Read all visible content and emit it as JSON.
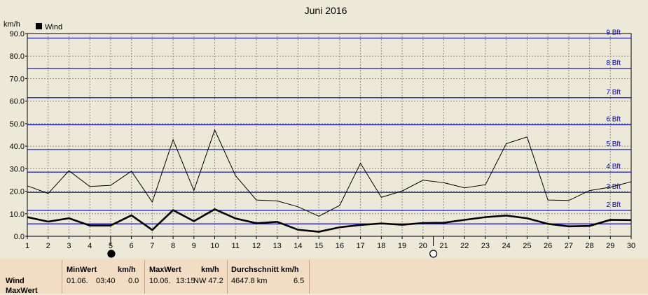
{
  "chart_data": {
    "type": "line",
    "title": "Juni 2016",
    "ylabel": "km/h",
    "legend": {
      "label": "Wind",
      "placement": "top-left"
    },
    "xlim": [
      1,
      30
    ],
    "ylim": [
      0,
      90
    ],
    "xticks": [
      "1",
      "2",
      "3",
      "4",
      "5",
      "6",
      "7",
      "8",
      "9",
      "10",
      "11",
      "12",
      "13",
      "14",
      "15",
      "16",
      "17",
      "18",
      "19",
      "20",
      "21",
      "22",
      "23",
      "24",
      "25",
      "26",
      "27",
      "28",
      "29",
      "30"
    ],
    "yticks": [
      "0.0",
      "10.0",
      "20.0",
      "30.0",
      "40.0",
      "50.0",
      "60.0",
      "70.0",
      "80.0",
      "90.0"
    ],
    "grid": true,
    "beaufort": [
      {
        "label": "",
        "value": 5.5
      },
      {
        "label": "2 Bft",
        "value": 11.5
      },
      {
        "label": "3 Bft",
        "value": 19.5
      },
      {
        "label": "4 Bft",
        "value": 28.5
      },
      {
        "label": "5 Bft",
        "value": 38.5
      },
      {
        "label": "6 Bft",
        "value": 49.5
      },
      {
        "label": "7 Bft",
        "value": 61.5
      },
      {
        "label": "8 Bft",
        "value": 74.5
      },
      {
        "label": "9 Bft",
        "value": 88
      }
    ],
    "x": [
      1,
      2,
      3,
      4,
      5,
      6,
      7,
      8,
      9,
      10,
      11,
      12,
      13,
      14,
      15,
      16,
      17,
      18,
      19,
      20,
      21,
      22,
      23,
      24,
      25,
      26,
      27,
      28,
      29,
      30
    ],
    "series": [
      {
        "values": [
          22.4,
          19.0,
          29.1,
          22.1,
          22.6,
          28.9,
          15.2,
          42.9,
          20.3,
          47.2,
          26.9,
          16.1,
          15.7,
          13.1,
          8.9,
          13.7,
          32.4,
          17.3,
          20.1,
          24.9,
          23.8,
          21.5,
          22.9,
          41.1,
          44.1,
          16.1,
          15.9,
          20.3,
          21.8,
          24.2
        ]
      },
      {
        "values": [
          8.5,
          6.5,
          8.0,
          4.8,
          4.8,
          9.3,
          2.8,
          11.6,
          6.7,
          12.0,
          7.9,
          5.8,
          6.4,
          2.9,
          2.0,
          4.0,
          5.0,
          5.7,
          5.1,
          5.9,
          6.0,
          7.3,
          8.5,
          9.2,
          8.0,
          5.5,
          4.4,
          4.6,
          7.3,
          7.2
        ]
      }
    ],
    "moon_phases": [
      {
        "day": 5,
        "phase": "new"
      },
      {
        "day": 20.5,
        "phase": "full"
      }
    ]
  },
  "stats": {
    "headers": {
      "min": "MinWert",
      "min_unit": "km/h",
      "max": "MaxWert",
      "max_unit": "km/h",
      "avg": "Durchschnitt km/h"
    },
    "rows": [
      {
        "label": "Wind",
        "min_date": "01.06.",
        "min_time": "03:40",
        "min_value": "0.0",
        "max_date": "10.06.",
        "max_time": "13:15",
        "max_dir_value": "NW 47.2",
        "distance": "4647.8 km",
        "avg": "6.5"
      },
      {
        "label": "MaxWert"
      }
    ]
  }
}
